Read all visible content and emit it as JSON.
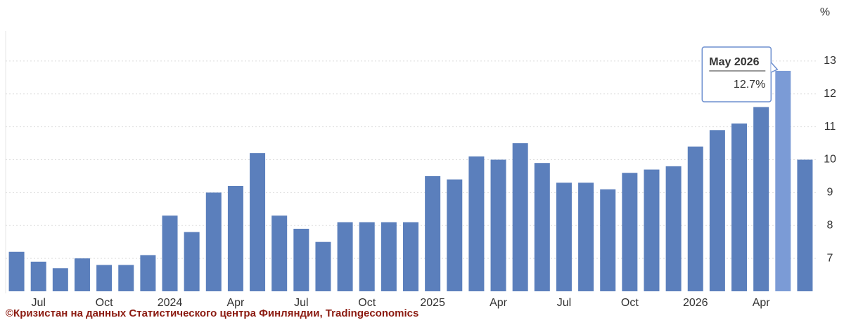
{
  "chart_data": {
    "type": "bar",
    "unit": "%",
    "categories": [
      null,
      "Jul",
      null,
      null,
      "Oct",
      null,
      null,
      "2024",
      null,
      null,
      "Apr",
      null,
      null,
      "Jul",
      null,
      null,
      "Oct",
      null,
      null,
      "2025",
      null,
      null,
      "Apr",
      null,
      null,
      "Jul",
      null,
      null,
      "Oct",
      null,
      null,
      "2026",
      null,
      null,
      "Apr",
      null,
      null
    ],
    "values": [
      7.2,
      6.9,
      6.7,
      7.0,
      6.8,
      6.8,
      7.1,
      8.3,
      7.8,
      9.0,
      9.2,
      10.2,
      8.3,
      7.9,
      7.5,
      8.1,
      8.1,
      8.1,
      8.1,
      9.5,
      9.4,
      10.1,
      10.0,
      10.5,
      9.9,
      9.3,
      9.3,
      9.1,
      9.6,
      9.7,
      9.8,
      10.4,
      10.9,
      11.1,
      11.6,
      12.7,
      10.0
    ],
    "value_labels": [
      null,
      null,
      null,
      null,
      null,
      null,
      null,
      null,
      null,
      null,
      null,
      null,
      null,
      null,
      null,
      null,
      null,
      null,
      null,
      null,
      null,
      null,
      null,
      null,
      null,
      null,
      null,
      null,
      null,
      null,
      null,
      null,
      null,
      null,
      null,
      "12.7%",
      null
    ],
    "tooltip_title": "May 2026",
    "color": "#5b7fbc",
    "highlight_color": "#7b9bd6",
    "ylim": [
      6,
      14
    ],
    "yticks": [
      7,
      8,
      9,
      10,
      11,
      12,
      13
    ],
    "grid": true,
    "source": "©Кризистан на данных Статистического центра Финляндии, Tradingeconomics"
  }
}
